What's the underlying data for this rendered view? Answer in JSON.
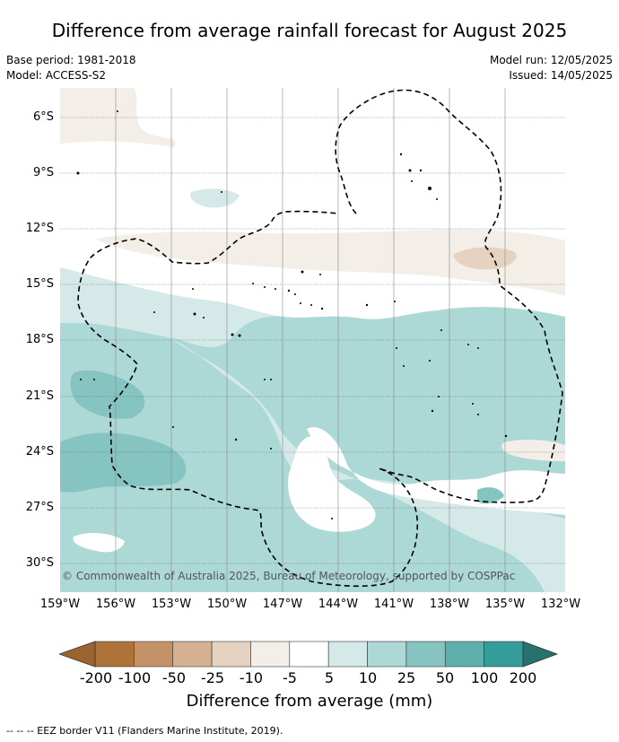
{
  "title": "Difference from average rainfall forecast for August 2025",
  "meta_left": [
    "Base period: 1981-2018",
    "Model: ACCESS-S2"
  ],
  "meta_right": [
    "Model run: 12/05/2025",
    "Issued: 14/05/2025"
  ],
  "copyright": "© Commonwealth of Australia 2025, Bureau of Meteorology, supported by COSPPac",
  "lat_labels": [
    "6°S",
    "9°S",
    "12°S",
    "15°S",
    "18°S",
    "21°S",
    "24°S",
    "27°S",
    "30°S"
  ],
  "lon_labels": [
    "159°W",
    "156°W",
    "153°W",
    "150°W",
    "147°W",
    "144°W",
    "141°W",
    "138°W",
    "135°W",
    "132°W"
  ],
  "colorbar": {
    "label": "Difference from average (mm)",
    "ticks": [
      "-200",
      "-100",
      "-50",
      "-25",
      "-10",
      "-5",
      "5",
      "10",
      "25",
      "50",
      "100",
      "200"
    ],
    "colors": [
      "#ad7338",
      "#c39266",
      "#d5b192",
      "#e6d2c0",
      "#f3eee8",
      "#ffffff",
      "#d5eae8",
      "#acd8d6",
      "#86c4c1",
      "#5fb0ad",
      "#349c99",
      "#2b8683"
    ],
    "extend_low_color": "#9c6530",
    "extend_high_color": "#27726f"
  },
  "footer": "-- -- -- EEZ border V11 (Flanders Marine Institute, 2019)."
}
